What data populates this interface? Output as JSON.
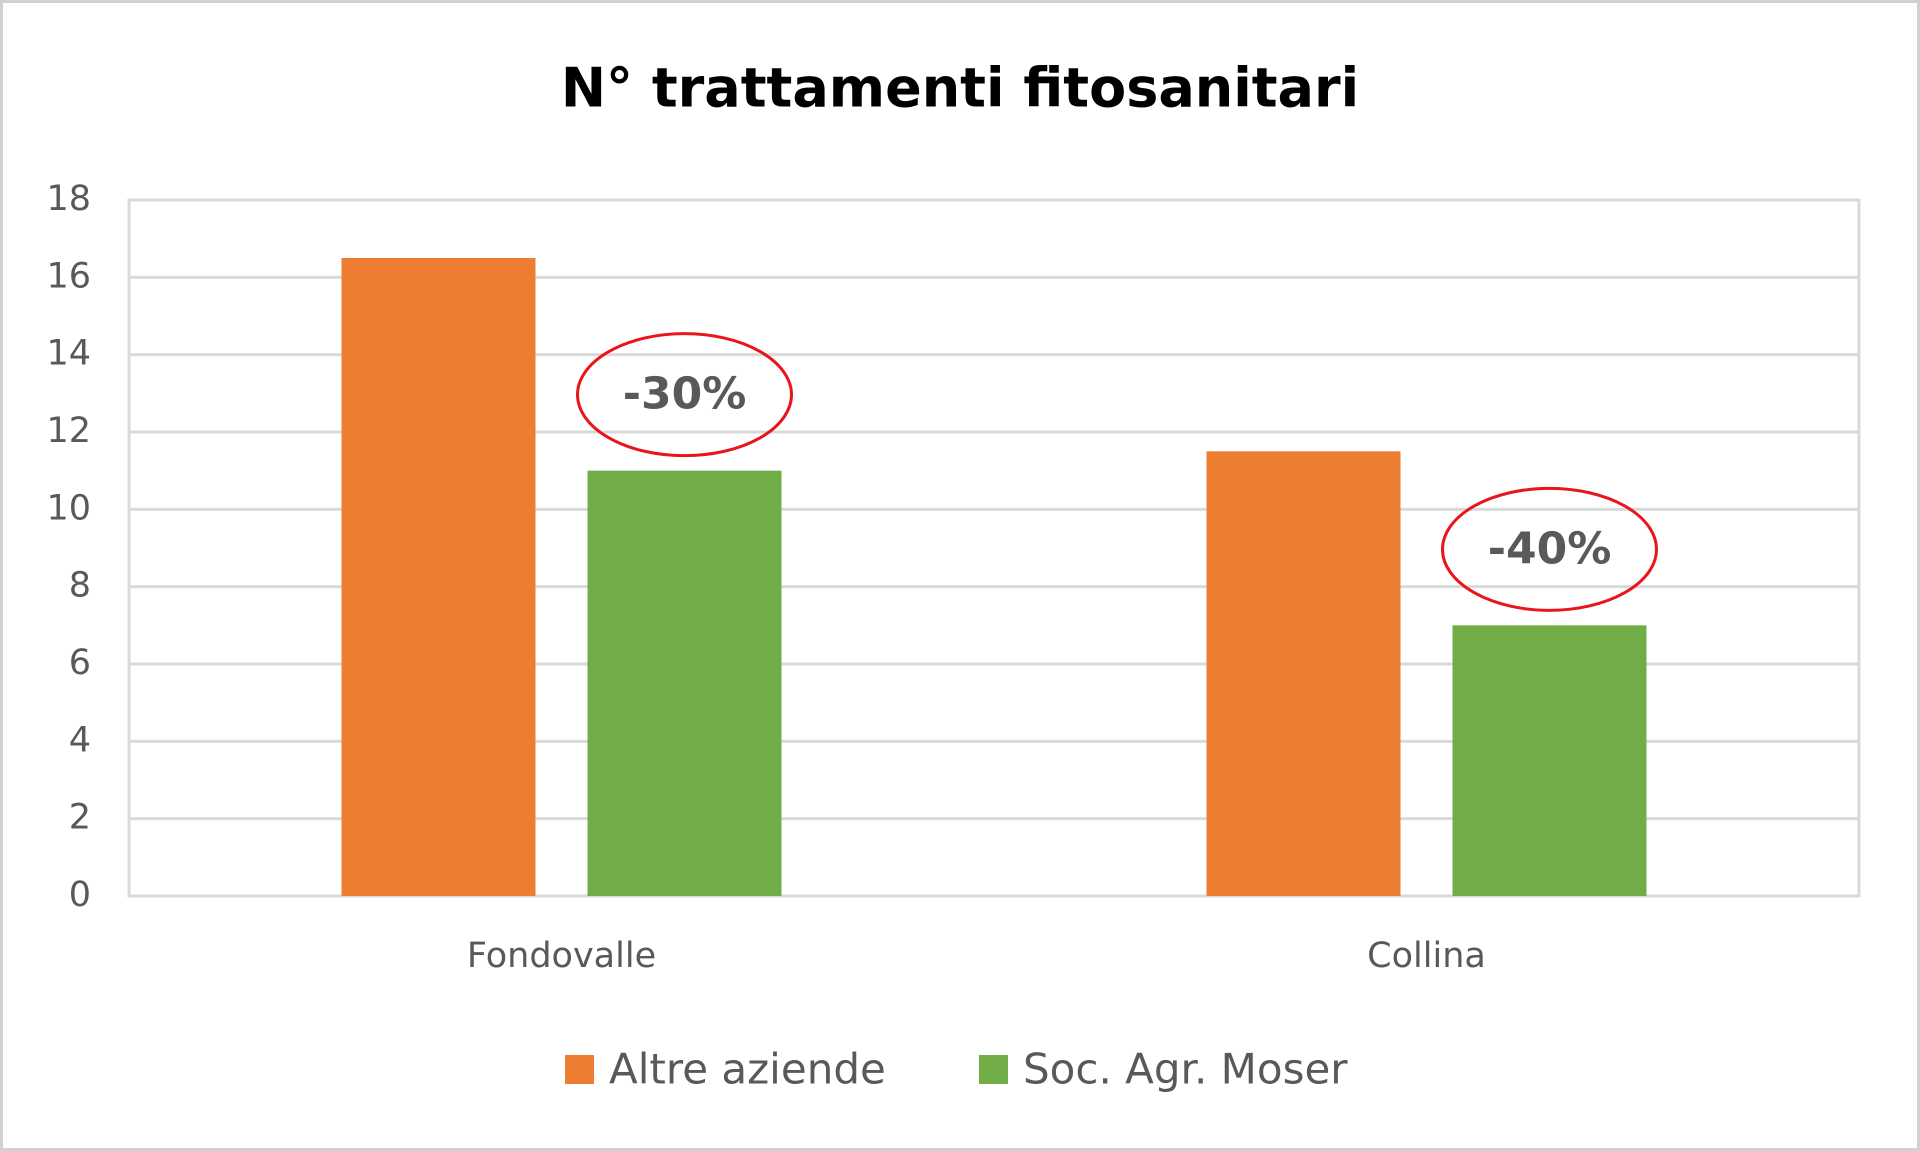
{
  "chart_data": {
    "type": "bar",
    "title": "N° trattamenti fitosanitari",
    "categories": [
      "Fondovalle",
      "Collina"
    ],
    "series": [
      {
        "name": "Altre aziende",
        "color": "#ed7d31",
        "values": [
          16.5,
          11.5
        ]
      },
      {
        "name": "Soc. Agr. Moser",
        "color": "#70ad47",
        "values": [
          11,
          7
        ]
      }
    ],
    "annotations": [
      "-30%",
      "-40%"
    ],
    "ylim": [
      0,
      18
    ],
    "yticks": [
      0,
      2,
      4,
      6,
      8,
      10,
      12,
      14,
      16,
      18
    ],
    "grid": true,
    "legend": "bottom"
  }
}
